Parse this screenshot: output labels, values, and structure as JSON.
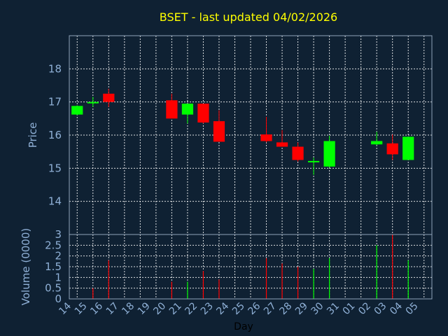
{
  "chart_data": [
    {
      "type": "candlestick",
      "title": "BSET - last updated 04/02/2026",
      "ylabel": "Price",
      "ylim": [
        13.0,
        19.0
      ],
      "yticks": [
        14,
        15,
        16,
        17,
        18
      ],
      "grid": true,
      "x": [
        "14",
        "15",
        "16",
        "17",
        "18",
        "19",
        "20",
        "21",
        "22",
        "23",
        "24",
        "25",
        "26",
        "27",
        "28",
        "29",
        "30",
        "31",
        "01",
        "02",
        "03",
        "04",
        "05"
      ],
      "candles": [
        {
          "x": "14",
          "open": 16.62,
          "close": 16.88,
          "high": 16.9,
          "low": 16.6
        },
        {
          "x": "15",
          "open": 17.0,
          "close": 17.0,
          "high": 17.15,
          "low": 16.85
        },
        {
          "x": "16",
          "open": 17.25,
          "close": 17.0,
          "high": 17.4,
          "low": 16.85
        },
        {
          "x": "20",
          "open": 17.05,
          "close": 16.5,
          "high": 17.25,
          "low": 16.5
        },
        {
          "x": "21",
          "open": 16.62,
          "close": 16.95,
          "high": 16.95,
          "low": 16.35
        },
        {
          "x": "22",
          "open": 16.95,
          "close": 16.38,
          "high": 16.95,
          "low": 16.35
        },
        {
          "x": "23",
          "open": 16.42,
          "close": 15.8,
          "high": 16.75,
          "low": 15.8
        },
        {
          "x": "26",
          "open": 16.02,
          "close": 15.82,
          "high": 16.55,
          "low": 15.78
        },
        {
          "x": "27",
          "open": 15.78,
          "close": 15.65,
          "high": 16.15,
          "low": 15.65
        },
        {
          "x": "28",
          "open": 15.65,
          "close": 15.25,
          "high": 15.78,
          "low": 15.2
        },
        {
          "x": "29",
          "open": 15.2,
          "close": 15.22,
          "high": 15.32,
          "low": 14.8
        },
        {
          "x": "30",
          "open": 15.05,
          "close": 15.82,
          "high": 15.98,
          "low": 15.02
        },
        {
          "x": "02",
          "open": 15.72,
          "close": 15.82,
          "high": 16.1,
          "low": 15.7
        },
        {
          "x": "03",
          "open": 15.75,
          "close": 15.42,
          "high": 16.02,
          "low": 15.25
        },
        {
          "x": "04",
          "open": 15.25,
          "close": 15.95,
          "high": 15.95,
          "low": 15.25
        }
      ],
      "colors": {
        "up": "#00ff00",
        "down": "#ff0000",
        "background": "#0f2133",
        "title": "#ffff00",
        "text": "#8fb0d6"
      }
    },
    {
      "type": "bar",
      "ylabel": "Volume (0000)",
      "xlabel": "Day",
      "ylim": [
        0,
        3
      ],
      "yticks": [
        "0",
        "0.5",
        "1",
        "1.5",
        "2",
        "2.5",
        "3"
      ],
      "grid": true,
      "volumes": [
        {
          "x": "15",
          "value": 0.5,
          "dir": "down"
        },
        {
          "x": "16",
          "value": 1.8,
          "dir": "down"
        },
        {
          "x": "20",
          "value": 0.8,
          "dir": "down"
        },
        {
          "x": "21",
          "value": 0.8,
          "dir": "up"
        },
        {
          "x": "22",
          "value": 1.3,
          "dir": "down"
        },
        {
          "x": "23",
          "value": 0.9,
          "dir": "down"
        },
        {
          "x": "26",
          "value": 1.9,
          "dir": "down"
        },
        {
          "x": "27",
          "value": 1.65,
          "dir": "down"
        },
        {
          "x": "28",
          "value": 1.5,
          "dir": "down"
        },
        {
          "x": "29",
          "value": 1.4,
          "dir": "up"
        },
        {
          "x": "30",
          "value": 1.9,
          "dir": "up"
        },
        {
          "x": "02",
          "value": 2.5,
          "dir": "up"
        },
        {
          "x": "03",
          "value": 3.0,
          "dir": "down"
        },
        {
          "x": "04",
          "value": 1.8,
          "dir": "up"
        }
      ]
    }
  ]
}
